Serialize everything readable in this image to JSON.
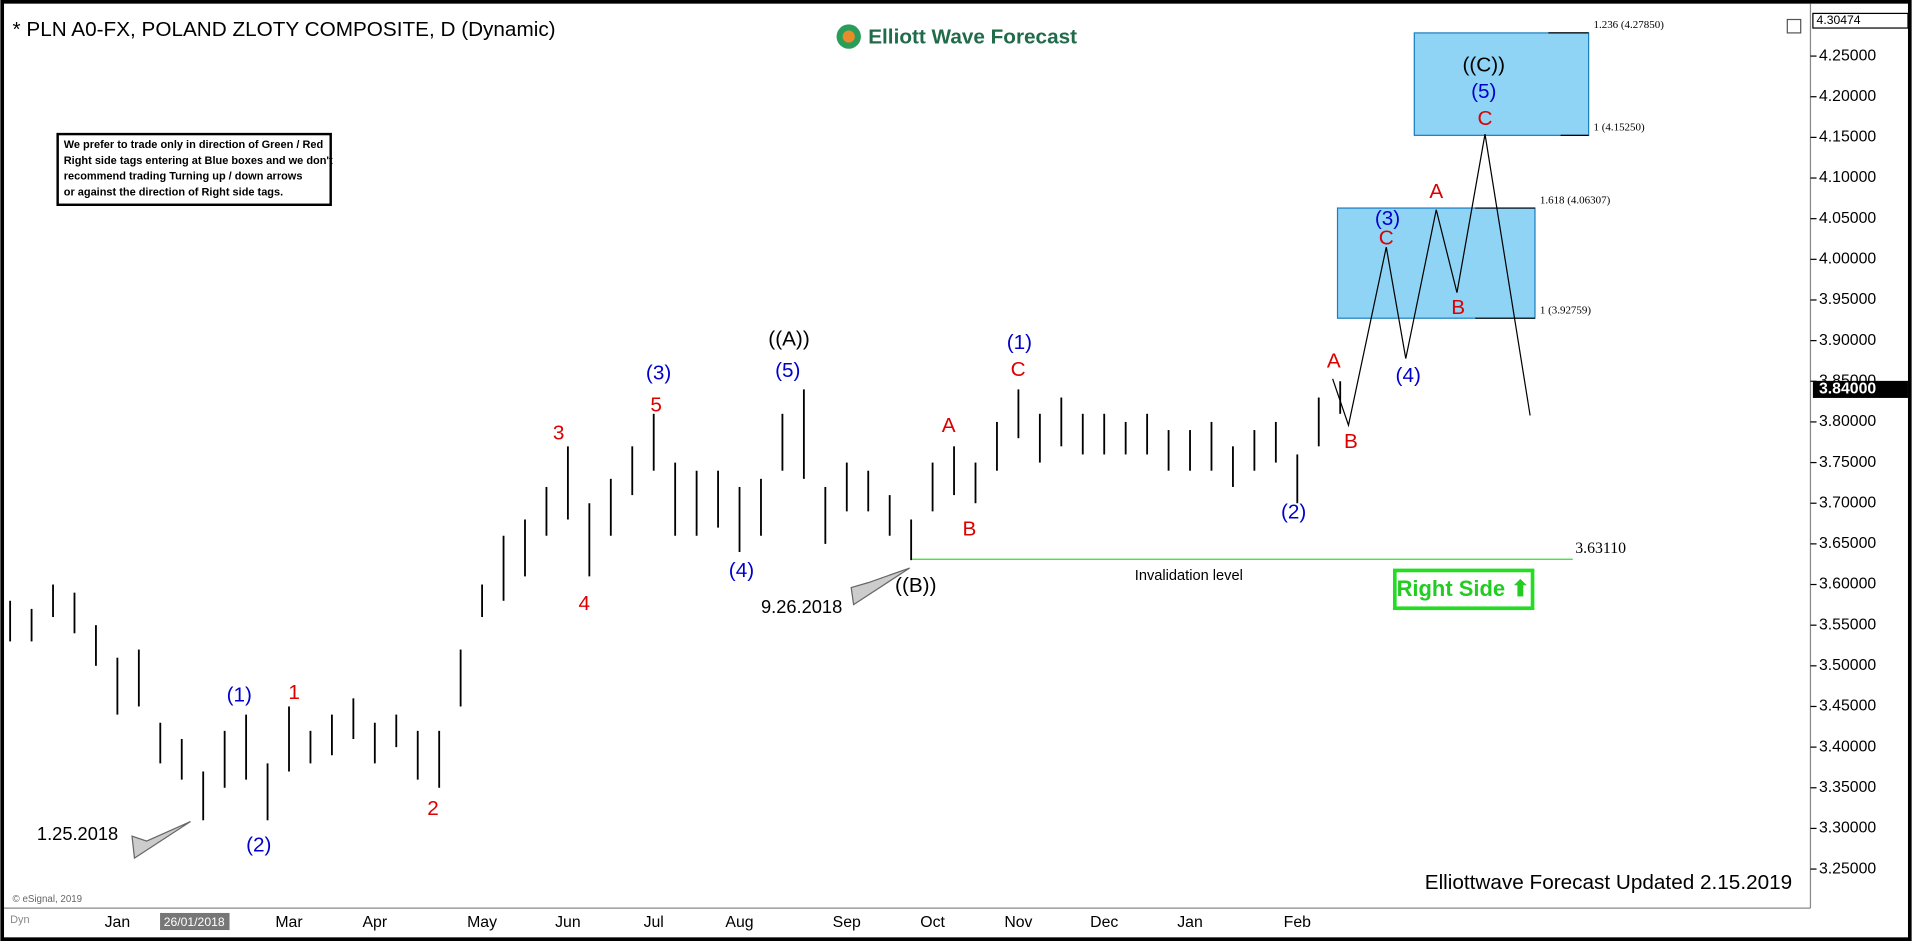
{
  "chart_data": {
    "type": "ohlc",
    "title": "* PLN A0-FX, POLAND ZLOTY COMPOSITE, D (Dynamic)",
    "logo": "Elliott Wave Forecast",
    "note": [
      "We prefer to trade only in direction of Green / Red",
      "Right side tags entering at Blue boxes and we don't",
      "recommend trading Turning up / down arrows",
      "or against the direction of Right side tags."
    ],
    "footer": "Elliottwave Forecast Updated 2.15.2019",
    "copyright": "© eSignal, 2019",
    "dyn": "Dyn",
    "crosshair_label": "26/01/2018",
    "right_side": "Right Side ⬆",
    "dates": [
      "1.25.2018",
      "9.26.2018"
    ],
    "categories": [
      null,
      null,
      null,
      null,
      null,
      "Jan",
      null,
      null,
      null,
      null,
      null,
      null,
      null,
      "Mar",
      null,
      null,
      null,
      "Apr",
      null,
      null,
      null,
      null,
      "May",
      null,
      null,
      null,
      "Jun",
      null,
      null,
      null,
      "Jul",
      null,
      null,
      null,
      "Aug",
      null,
      null,
      null,
      null,
      "Sep",
      null,
      null,
      null,
      "Oct",
      null,
      null,
      null,
      "Nov",
      null,
      null,
      null,
      "Dec",
      null,
      null,
      null,
      "Jan",
      null,
      null,
      null,
      null,
      "Feb",
      null,
      null
    ],
    "high": [
      3.58,
      3.57,
      3.6,
      3.59,
      3.55,
      3.51,
      3.52,
      3.43,
      3.41,
      3.37,
      3.42,
      3.44,
      3.38,
      3.45,
      3.42,
      3.44,
      3.46,
      3.43,
      3.44,
      3.42,
      3.42,
      3.52,
      3.6,
      3.66,
      3.68,
      3.72,
      3.77,
      3.7,
      3.73,
      3.77,
      3.81,
      3.75,
      3.74,
      3.74,
      3.72,
      3.73,
      3.81,
      3.84,
      3.72,
      3.75,
      3.74,
      3.71,
      3.68,
      3.75,
      3.77,
      3.75,
      3.8,
      3.84,
      3.81,
      3.83,
      3.81,
      3.81,
      3.8,
      3.81,
      3.79,
      3.79,
      3.8,
      3.77,
      3.79,
      3.8,
      3.76,
      3.83,
      3.85
    ],
    "low": [
      3.53,
      3.53,
      3.56,
      3.54,
      3.5,
      3.44,
      3.45,
      3.38,
      3.36,
      3.31,
      3.35,
      3.36,
      3.31,
      3.37,
      3.38,
      3.39,
      3.41,
      3.38,
      3.4,
      3.36,
      3.35,
      3.45,
      3.56,
      3.58,
      3.61,
      3.66,
      3.68,
      3.61,
      3.66,
      3.71,
      3.74,
      3.66,
      3.66,
      3.67,
      3.64,
      3.66,
      3.74,
      3.73,
      3.65,
      3.69,
      3.69,
      3.66,
      3.63,
      3.69,
      3.71,
      3.7,
      3.74,
      3.78,
      3.75,
      3.77,
      3.76,
      3.76,
      3.76,
      3.76,
      3.74,
      3.74,
      3.74,
      3.72,
      3.74,
      3.75,
      3.7,
      3.77,
      3.81
    ],
    "color": "#000000",
    "ylim": [
      3.202,
      4.30474
    ],
    "yticks": [
      {
        "value": 3.25,
        "label": "3.25000"
      },
      {
        "value": 3.3,
        "label": "3.30000"
      },
      {
        "value": 3.35,
        "label": "3.35000"
      },
      {
        "value": 3.4,
        "label": "3.40000"
      },
      {
        "value": 3.45,
        "label": "3.45000"
      },
      {
        "value": 3.5,
        "label": "3.50000"
      },
      {
        "value": 3.55,
        "label": "3.55000"
      },
      {
        "value": 3.6,
        "label": "3.60000"
      },
      {
        "value": 3.65,
        "label": "3.65000"
      },
      {
        "value": 3.7,
        "label": "3.70000"
      },
      {
        "value": 3.75,
        "label": "3.75000"
      },
      {
        "value": 3.8,
        "label": "3.80000"
      },
      {
        "value": 3.85,
        "label": "3.85000"
      },
      {
        "value": 3.9,
        "label": "3.90000"
      },
      {
        "value": 3.95,
        "label": "3.95000"
      },
      {
        "value": 4.0,
        "label": "4.00000"
      },
      {
        "value": 4.05,
        "label": "4.05000"
      },
      {
        "value": 4.1,
        "label": "4.10000"
      },
      {
        "value": 4.15,
        "label": "4.15000"
      },
      {
        "value": 4.2,
        "label": "4.20000"
      },
      {
        "value": 4.25,
        "label": "4.25000"
      }
    ],
    "last_price": {
      "value": 3.84,
      "label": "3.84000"
    },
    "projection": [
      3.853,
      3.796,
      4.015,
      3.878,
      4.061,
      3.959,
      4.154,
      3.808
    ],
    "fib_levels": [
      {
        "value": 4.2785,
        "label": "1.236 (4.27850)"
      },
      {
        "value": 4.1525,
        "label": "1 (4.15250)"
      },
      {
        "value": 4.06307,
        "label": "1.618 (4.06307)"
      },
      {
        "value": 3.92759,
        "label": "1 (3.92759)"
      }
    ],
    "invalidation": {
      "value": 3.6311,
      "label": "3.63110",
      "text": "Invalidation level"
    },
    "waves": [
      {
        "text": "(1)",
        "color": "#0000cc"
      },
      {
        "text": "(2)",
        "color": "#0000cc"
      },
      {
        "text": "(3)",
        "color": "#0000cc"
      },
      {
        "text": "(4)",
        "color": "#0000cc"
      },
      {
        "text": "(5)",
        "color": "#0000cc"
      },
      {
        "text": "(1)",
        "color": "#0000cc"
      },
      {
        "text": "(2)",
        "color": "#0000cc"
      },
      {
        "text": "(3)",
        "color": "#0000cc"
      },
      {
        "text": "(4)",
        "color": "#0000cc"
      },
      {
        "text": "(5)",
        "color": "#0000cc"
      },
      {
        "text": "1",
        "color": "#dd0000"
      },
      {
        "text": "2",
        "color": "#dd0000"
      },
      {
        "text": "3",
        "color": "#dd0000"
      },
      {
        "text": "4",
        "color": "#dd0000"
      },
      {
        "text": "5",
        "color": "#dd0000"
      },
      {
        "text": "A",
        "color": "#dd0000"
      },
      {
        "text": "B",
        "color": "#dd0000"
      },
      {
        "text": "C",
        "color": "#dd0000"
      },
      {
        "text": "A",
        "color": "#dd0000"
      },
      {
        "text": "B",
        "color": "#dd0000"
      },
      {
        "text": "C",
        "color": "#dd0000"
      },
      {
        "text": "A",
        "color": "#dd0000"
      },
      {
        "text": "B",
        "color": "#dd0000"
      },
      {
        "text": "C",
        "color": "#dd0000"
      },
      {
        "text": "((A))",
        "color": "#000000"
      },
      {
        "text": "((B))",
        "color": "#000000"
      },
      {
        "text": "((C))",
        "color": "#000000"
      }
    ]
  }
}
